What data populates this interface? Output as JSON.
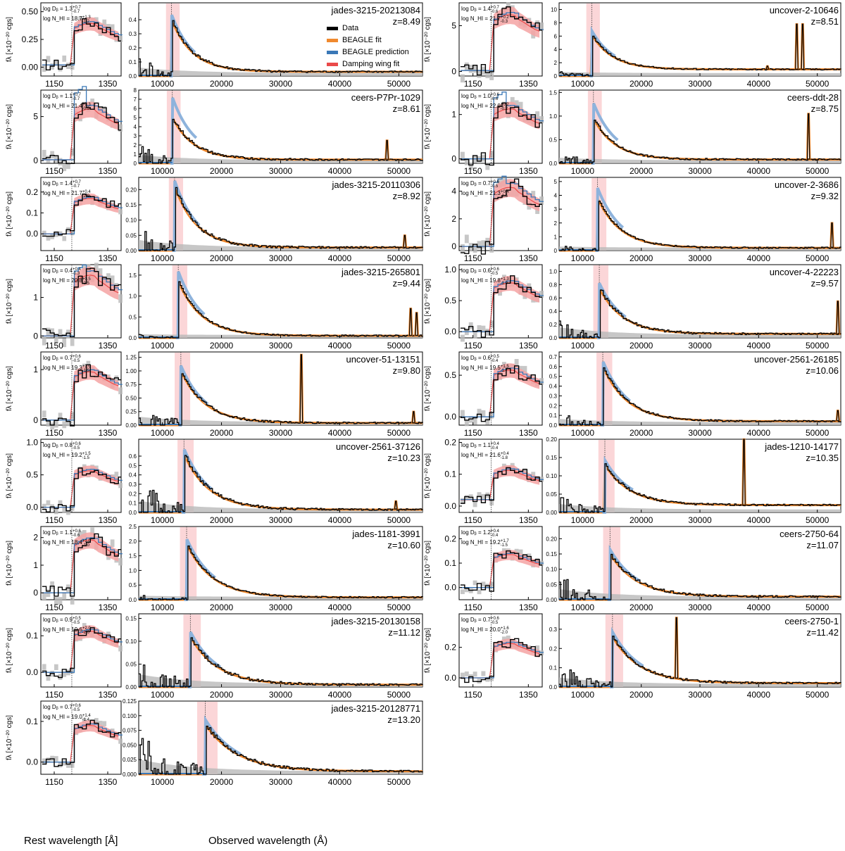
{
  "figure": {
    "xlabel_rest": "Rest wavelength [Å]",
    "xlabel_obs": "Observed wavelength (Å)",
    "ylabel": "f_λ [×10^-20 cgs]",
    "colors": {
      "data": "#000000",
      "fit": "#f0892e",
      "prediction": "#3a78b7",
      "damping": "#ea4a4a",
      "damping_band": "#f4a3a3",
      "error": "#b9b9b9",
      "lya_band": "#fbd6d8"
    }
  },
  "legend": {
    "items": [
      {
        "label": "Data",
        "color": "#000000"
      },
      {
        "label": "BEAGLE fit",
        "color": "#f0892e"
      },
      {
        "label": "BEAGLE prediction",
        "color": "#3a78b7"
      },
      {
        "label": "Damping wing fit",
        "color": "#ea4a4a"
      }
    ]
  },
  "chart_data": [
    {
      "type": "line",
      "name": "jades-3215-20213084",
      "redshift": "z=8.49",
      "z": 8.49,
      "logDb": "1.3",
      "logDb_err": [
        "+0.7",
        "-0.7"
      ],
      "logNHI": "18.7",
      "logNHI_err": [
        "+1.3",
        "-1.2"
      ],
      "rest_ylim": [
        -0.08,
        0.58
      ],
      "rest_yticks": [
        "0.00",
        "0.25",
        "0.50"
      ],
      "rest_yvals": [
        0,
        0.25,
        0.5
      ],
      "obs_ylim": [
        0,
        0.52
      ],
      "obs_yticks": [
        "0.0",
        "0.1",
        "0.2",
        "0.3",
        "0.4"
      ],
      "peak": 0.4,
      "tail": 0.03,
      "noise": 0.25,
      "rest_level": 0.35,
      "pre_level": 0.02
    },
    {
      "type": "line",
      "name": "uncover-2-10646",
      "redshift": "z=8.51",
      "z": 8.51,
      "logDb": "1.4",
      "logDb_err": [
        "+0.7",
        "-0.6"
      ],
      "logNHI": "21.7",
      "logNHI_err": [
        "+0.2",
        "-0.3"
      ],
      "rest_ylim": [
        -0.5,
        7.5
      ],
      "rest_yticks": [
        "0",
        "5"
      ],
      "rest_yvals": [
        0,
        5
      ],
      "obs_ylim": [
        0,
        11
      ],
      "obs_yticks": [
        "0",
        "2",
        "4",
        "6",
        "8",
        "10"
      ],
      "peak": 6.2,
      "tail": 1.0,
      "noise": 0.05,
      "rest_level": 5.5,
      "pre_level": 0.1,
      "lines": [
        [
          46500,
          7.8
        ],
        [
          47500,
          7.8
        ],
        [
          41500,
          1.5
        ],
        [
          36000,
          1.0
        ]
      ]
    },
    {
      "type": "line",
      "name": "ceers-P7Pr-1029",
      "redshift": "z=8.61",
      "z": 8.61,
      "logDb": "1.1",
      "logDb_err": [
        "+0.7",
        "-0.7"
      ],
      "logNHI": "21.4",
      "logNHI_err": [
        "+0.3",
        "-0.5"
      ],
      "rest_ylim": [
        -0.3,
        8
      ],
      "rest_yticks": [
        "0",
        "5"
      ],
      "rest_yvals": [
        0,
        5
      ],
      "obs_ylim": [
        0,
        8
      ],
      "obs_yticks": [
        "0",
        "1",
        "2",
        "3",
        "4",
        "5",
        "6",
        "7",
        "8"
      ],
      "peak": 5.0,
      "tail": 0.4,
      "noise": 0.25,
      "rest_level": 5.2,
      "pre_level": 0.1,
      "pred_boost": 1.45,
      "lines": [
        [
          48000,
          2.5
        ]
      ]
    },
    {
      "type": "line",
      "name": "ceers-ddt-28",
      "redshift": "z=8.75",
      "z": 8.75,
      "logDb": "1.0",
      "logDb_err": [
        "+0.6",
        "-0.6"
      ],
      "logNHI": "22.0",
      "logNHI_err": [
        "+0.2",
        "-0.2"
      ],
      "rest_ylim": [
        -0.1,
        1.55
      ],
      "rest_yticks": [
        "0",
        "1"
      ],
      "rest_yvals": [
        0,
        1
      ],
      "obs_ylim": [
        0,
        1.55
      ],
      "obs_yticks": [
        "0.0",
        "0.5",
        "1.0",
        "1.5"
      ],
      "peak": 0.95,
      "tail": 0.08,
      "noise": 0.12,
      "rest_level": 1.0,
      "pre_level": 0.0,
      "pred_boost": 1.35,
      "lines": [
        [
          48500,
          1.05
        ]
      ]
    },
    {
      "type": "line",
      "name": "jades-3215-20110306",
      "redshift": "z=8.92",
      "z": 8.92,
      "logDb": "1.4",
      "logDb_err": [
        "+0.7",
        "-0.7"
      ],
      "logNHI": "21.7",
      "logNHI_err": [
        "+0.4",
        "-2.9"
      ],
      "rest_ylim": [
        -0.08,
        0.27
      ],
      "rest_yticks": [
        "0.0",
        "0.1",
        "0.2"
      ],
      "rest_yvals": [
        0,
        0.1,
        0.2
      ],
      "obs_ylim": [
        0,
        0.24
      ],
      "obs_yticks": [
        "0.00",
        "0.05",
        "0.10",
        "0.15",
        "0.20"
      ],
      "peak": 0.21,
      "tail": 0.01,
      "noise": 0.35,
      "rest_level": 0.15,
      "pre_level": 0.0,
      "lines": [
        [
          51000,
          0.05
        ]
      ]
    },
    {
      "type": "line",
      "name": "uncover-2-3686",
      "redshift": "z=9.32",
      "z": 9.32,
      "logDb": "0.7",
      "logDb_err": [
        "+0.6",
        "-0.5"
      ],
      "logNHI": "21.3",
      "logNHI_err": [
        "+0.4",
        "-2.5"
      ],
      "rest_ylim": [
        -0.3,
        5
      ],
      "rest_yticks": [
        "0",
        "2",
        "4"
      ],
      "rest_yvals": [
        0,
        2,
        4
      ],
      "obs_ylim": [
        0,
        5.3
      ],
      "obs_yticks": [
        "0",
        "1",
        "2",
        "3",
        "4",
        "5"
      ],
      "peak": 3.8,
      "tail": 0.2,
      "noise": 0.05,
      "rest_level": 3.8,
      "pre_level": 0.0,
      "pred_boost": 1.2,
      "lines": [
        [
          52500,
          2.0
        ]
      ]
    },
    {
      "type": "line",
      "name": "jades-3215-265801",
      "redshift": "z=9.44",
      "z": 9.44,
      "logDb": "0.4",
      "logDb_err": [
        "+0.4",
        "-0.3"
      ],
      "logNHI": "20.8",
      "logNHI_err": [
        "+0.5",
        "-0.5"
      ],
      "rest_ylim": [
        -0.05,
        1.85
      ],
      "rest_yticks": [
        "0",
        "1"
      ],
      "rest_yvals": [
        0,
        1
      ],
      "obs_ylim": [
        0,
        1.75
      ],
      "obs_yticks": [
        "0.0",
        "0.5",
        "1.0",
        "1.5"
      ],
      "peak": 1.35,
      "tail": 0.05,
      "noise": 0.03,
      "rest_level": 1.4,
      "pre_level": 0.0,
      "pred_boost": 1.18,
      "lines": [
        [
          52000,
          0.7
        ],
        [
          53000,
          0.6
        ]
      ]
    },
    {
      "type": "line",
      "name": "uncover-4-22223",
      "redshift": "z=9.57",
      "z": 9.57,
      "logDb": "0.6",
      "logDb_err": [
        "+0.6",
        "-0.5"
      ],
      "logNHI": "19.8",
      "logNHI_err": [
        "+1.3",
        "-1.9"
      ],
      "rest_ylim": [
        -0.1,
        1.08
      ],
      "rest_yticks": [
        "0.0",
        "0.5",
        "1.0"
      ],
      "rest_yvals": [
        0,
        0.5,
        1.0
      ],
      "obs_ylim": [
        0,
        1.1
      ],
      "obs_yticks": [
        "0.0",
        "0.2",
        "0.4",
        "0.6",
        "0.8",
        "1.0"
      ],
      "peak": 0.75,
      "tail": 0.06,
      "noise": 0.35,
      "rest_level": 0.7,
      "pre_level": 0.0,
      "lines": [
        [
          53500,
          0.55
        ]
      ]
    },
    {
      "type": "line",
      "name": "uncover-51-13151",
      "redshift": "z=9.80",
      "z": 9.8,
      "logDb": "0.7",
      "logDb_err": [
        "+0.6",
        "-0.5"
      ],
      "logNHI": "19.3",
      "logNHI_err": [
        "+1.0",
        "-1.5"
      ],
      "rest_ylim": [
        -0.1,
        1.35
      ],
      "rest_yticks": [
        "0",
        "1"
      ],
      "rest_yvals": [
        0,
        1
      ],
      "obs_ylim": [
        0,
        1.35
      ],
      "obs_yticks": [
        "0.00",
        "0.25",
        "0.50",
        "0.75",
        "1.00",
        "1.25"
      ],
      "peak": 1.0,
      "tail": 0.04,
      "noise": 0.25,
      "rest_level": 0.85,
      "pre_level": 0.0,
      "lines": [
        [
          33500,
          1.3
        ],
        [
          52500,
          0.25
        ]
      ]
    },
    {
      "type": "line",
      "name": "uncover-2561-26185",
      "redshift": "z=10.06",
      "z": 10.06,
      "logDb": "0.6",
      "logDb_err": [
        "+0.5",
        "-0.4"
      ],
      "logNHI": "19.5",
      "logNHI_err": [
        "+1.5",
        "-1.7"
      ],
      "rest_ylim": [
        -0.1,
        0.78
      ],
      "rest_yticks": [
        "0.0",
        "0.5"
      ],
      "rest_yvals": [
        0,
        0.5
      ],
      "obs_ylim": [
        0,
        0.75
      ],
      "obs_yticks": [
        "0.0",
        "0.1",
        "0.2",
        "0.3",
        "0.4",
        "0.5",
        "0.6",
        "0.7"
      ],
      "peak": 0.6,
      "tail": 0.04,
      "noise": 0.15,
      "rest_level": 0.5,
      "pre_level": 0.0,
      "lines": [
        [
          53500,
          0.15
        ]
      ]
    },
    {
      "type": "line",
      "name": "uncover-2561-37126",
      "redshift": "z=10.23",
      "z": 10.23,
      "logDb": "0.8",
      "logDb_err": [
        "+0.6",
        "-0.5"
      ],
      "logNHI": "19.2",
      "logNHI_err": [
        "+1.5",
        "-1.5"
      ],
      "rest_ylim": [
        -0.08,
        1.05
      ],
      "rest_yticks": [
        "0.0",
        "0.5",
        "1.0"
      ],
      "rest_yvals": [
        0,
        0.5,
        1.0
      ],
      "obs_ylim": [
        0,
        0.78
      ],
      "obs_yticks": [
        "0.0",
        "0.1",
        "0.2",
        "0.3",
        "0.4",
        "0.5",
        "0.6"
      ],
      "peak": 0.62,
      "tail": 0.03,
      "noise": 0.4,
      "rest_level": 0.5,
      "pre_level": 0.0,
      "lines": [
        [
          49500,
          0.12
        ]
      ]
    },
    {
      "type": "line",
      "name": "jades-1210-14177",
      "redshift": "z=10.35",
      "z": 10.35,
      "logDb": "1.1",
      "logDb_err": [
        "+0.4",
        "-0.4"
      ],
      "logNHI": "21.6",
      "logNHI_err": [
        "+0.4",
        "-1.8"
      ],
      "rest_ylim": [
        -0.02,
        0.21
      ],
      "rest_yticks": [
        "0.0",
        "0.1",
        "0.2"
      ],
      "rest_yvals": [
        0,
        0.1,
        0.2
      ],
      "obs_ylim": [
        0,
        0.2
      ],
      "obs_yticks": [
        "0.00",
        "0.05",
        "0.10",
        "0.15",
        "0.20"
      ],
      "peak": 0.13,
      "tail": 0.02,
      "noise": 0.25,
      "rest_level": 0.1,
      "pre_level": 0.02,
      "lines": [
        [
          37500,
          0.2
        ]
      ]
    },
    {
      "type": "line",
      "name": "jades-1181-3991",
      "redshift": "z=10.60",
      "z": 10.6,
      "logDb": "1.1",
      "logDb_err": [
        "+0.6",
        "-0.6"
      ],
      "logNHI": "18.4",
      "logNHI_err": [
        "+1.0",
        "-1.0"
      ],
      "rest_ylim": [
        -0.25,
        2.4
      ],
      "rest_yticks": [
        "0",
        "1",
        "2"
      ],
      "rest_yvals": [
        0,
        1,
        2
      ],
      "obs_ylim": [
        0,
        2.5
      ],
      "obs_yticks": [
        "0.0",
        "0.5",
        "1.0",
        "1.5",
        "2.0",
        "2.5"
      ],
      "peak": 1.9,
      "tail": 0.08,
      "noise": 0.05,
      "rest_level": 1.7,
      "pre_level": 0.0
    },
    {
      "type": "line",
      "name": "ceers-2750-64",
      "redshift": "z=11.07",
      "z": 11.07,
      "logDb": "1.2",
      "logDb_err": [
        "+0.4",
        "-0.4"
      ],
      "logNHI": "19.2",
      "logNHI_err": [
        "+1.7",
        "-1.5"
      ],
      "rest_ylim": [
        -0.05,
        0.25
      ],
      "rest_yticks": [
        "0.0",
        "0.1",
        "0.2"
      ],
      "rest_yvals": [
        0,
        0.1,
        0.2
      ],
      "obs_ylim": [
        0,
        0.24
      ],
      "obs_yticks": [
        "0.00",
        "0.05",
        "0.10",
        "0.15",
        "0.20"
      ],
      "peak": 0.15,
      "tail": 0.01,
      "noise": 0.35,
      "rest_level": 0.12,
      "pre_level": 0.0
    },
    {
      "type": "line",
      "name": "jades-3215-20130158",
      "redshift": "z=11.12",
      "z": 11.12,
      "logDb": "0.9",
      "logDb_err": [
        "+0.5",
        "-0.5"
      ],
      "logNHI": "19.6",
      "logNHI_err": [
        "+2.0",
        "-2.0"
      ],
      "rest_ylim": [
        -0.04,
        0.16
      ],
      "rest_yticks": [
        "0.0",
        "0.1"
      ],
      "rest_yvals": [
        0,
        0.1
      ],
      "obs_ylim": [
        0,
        0.16
      ],
      "obs_yticks": [
        "0.00",
        "0.05",
        "0.10",
        "0.15"
      ],
      "peak": 0.11,
      "tail": 0.005,
      "noise": 0.45,
      "rest_level": 0.1,
      "pre_level": 0.0
    },
    {
      "type": "line",
      "name": "ceers-2750-1",
      "redshift": "z=11.42",
      "z": 11.42,
      "logDb": "0.7",
      "logDb_err": [
        "+0.6",
        "-0.5"
      ],
      "logNHI": "20.0",
      "logNHI_err": [
        "+1.6",
        "-2.0"
      ],
      "rest_ylim": [
        -0.06,
        0.42
      ],
      "rest_yticks": [
        "0.0",
        "0.2"
      ],
      "rest_yvals": [
        0,
        0.2
      ],
      "obs_ylim": [
        0,
        0.38
      ],
      "obs_yticks": [
        "0.0",
        "0.1",
        "0.2",
        "0.3"
      ],
      "peak": 0.26,
      "tail": 0.02,
      "noise": 0.3,
      "rest_level": 0.2,
      "pre_level": 0.0,
      "lines": [
        [
          26000,
          0.36
        ]
      ]
    },
    {
      "type": "line",
      "name": "jades-3215-20128771",
      "redshift": "z=13.20",
      "z": 13.2,
      "logDb": "0.7",
      "logDb_err": [
        "+0.6",
        "-0.5"
      ],
      "logNHI": "19.0",
      "logNHI_err": [
        "+1.4",
        "-1.4"
      ],
      "rest_ylim": [
        -0.03,
        0.15
      ],
      "rest_yticks": [
        "0.0",
        "0.1"
      ],
      "rest_yvals": [
        0,
        0.1
      ],
      "obs_ylim": [
        0,
        0.125
      ],
      "obs_yticks": [
        "0.000",
        "0.025",
        "0.050",
        "0.075",
        "0.100",
        "0.125"
      ],
      "peak": 0.085,
      "tail": 0.005,
      "noise": 0.55,
      "rest_level": 0.08,
      "pre_level": 0.0
    }
  ],
  "axes": {
    "rest_xlim": [
      1100,
      1400
    ],
    "rest_xticks": [
      "1150",
      "1350"
    ],
    "rest_xvals": [
      1150,
      1350
    ],
    "obs_xlim": [
      6000,
      54000
    ],
    "obs_xticks": [
      "10000",
      "20000",
      "30000",
      "40000",
      "50000"
    ],
    "obs_xvals": [
      10000,
      20000,
      30000,
      40000,
      50000
    ],
    "lya_rest": 1215.67
  }
}
